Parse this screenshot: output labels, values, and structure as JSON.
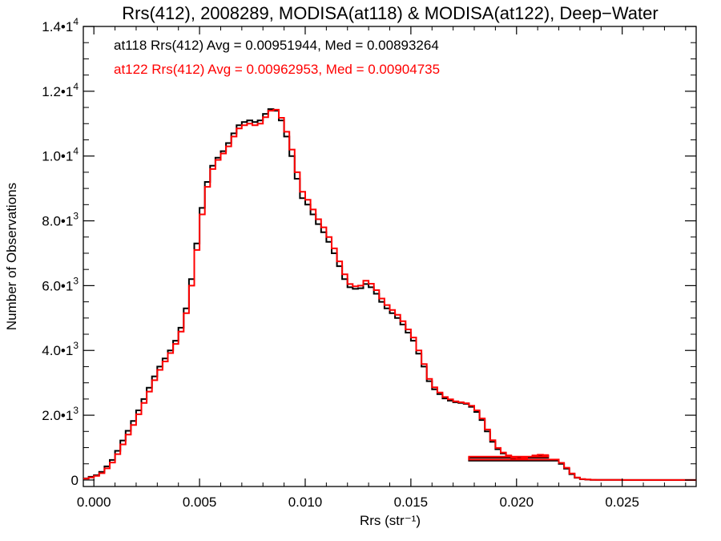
{
  "chart_data": {
    "type": "line",
    "title": "Rrs(412), 2008289, MODISA(at118) & MODISA(at122), Deep−Water",
    "xlabel": "Rrs (str⁻¹)",
    "ylabel": "Number of Observations",
    "xlim": [
      -0.0005,
      0.0285
    ],
    "ylim": [
      -200,
      14000
    ],
    "x_ticks": [
      {
        "value": 0.0,
        "label": "0.000"
      },
      {
        "value": 0.005,
        "label": "0.005"
      },
      {
        "value": 0.01,
        "label": "0.010"
      },
      {
        "value": 0.015,
        "label": "0.015"
      },
      {
        "value": 0.02,
        "label": "0.020"
      },
      {
        "value": 0.025,
        "label": "0.025"
      }
    ],
    "y_ticks": [
      {
        "value": 0,
        "mantissa": "0",
        "exponent": ""
      },
      {
        "value": 2000,
        "mantissa": "2.0•1",
        "exponent": "3"
      },
      {
        "value": 4000,
        "mantissa": "4.0•1",
        "exponent": "3"
      },
      {
        "value": 6000,
        "mantissa": "6.0•1",
        "exponent": "3"
      },
      {
        "value": 8000,
        "mantissa": "8.0•1",
        "exponent": "3"
      },
      {
        "value": 10000,
        "mantissa": "1.0•1",
        "exponent": "4"
      },
      {
        "value": 12000,
        "mantissa": "1.2•1",
        "exponent": "4"
      },
      {
        "value": 14000,
        "mantissa": "1.4•1",
        "exponent": "4"
      }
    ],
    "grid": false,
    "step": true,
    "annotations": [
      {
        "text": "at118 Rrs(412) Avg = 0.00951944, Med = 0.00893264",
        "color": "#000000"
      },
      {
        "text": "at122 Rrs(412) Avg = 0.00962953, Med = 0.00904735",
        "color": "#ff0000"
      }
    ],
    "series": [
      {
        "color": "#000000",
        "x": [
          -0.0005,
          -0.00025,
          0.0,
          0.00025,
          0.0005,
          0.00075,
          0.001,
          0.00125,
          0.0015,
          0.00175,
          0.002,
          0.00225,
          0.0025,
          0.00275,
          0.003,
          0.00325,
          0.0035,
          0.00375,
          0.004,
          0.00425,
          0.0045,
          0.00475,
          0.005,
          0.00525,
          0.0055,
          0.00575,
          0.006,
          0.00625,
          0.0065,
          0.00675,
          0.007,
          0.00725,
          0.0075,
          0.00775,
          0.008,
          0.00825,
          0.0085,
          0.00875,
          0.009,
          0.00925,
          0.0095,
          0.00975,
          0.01,
          0.01025,
          0.0105,
          0.01075,
          0.011,
          0.01125,
          0.0115,
          0.01175,
          0.012,
          0.01225,
          0.0125,
          0.01275,
          0.013,
          0.01325,
          0.0135,
          0.01375,
          0.014,
          0.01425,
          0.0145,
          0.01475,
          0.015,
          0.01525,
          0.0155,
          0.01575,
          0.016,
          0.01625,
          0.0165,
          0.01675,
          0.017,
          0.01725,
          0.0175,
          0.01775,
          0.018,
          0.01825,
          0.0185,
          0.01875,
          0.019,
          0.01925,
          0.0195,
          0.01975,
          0.02,
          0.02025,
          0.0205,
          0.02075,
          0.021,
          0.02125,
          0.0215,
          0.01775,
          0.022,
          0.02225,
          0.0225,
          0.02275,
          0.023,
          0.02325,
          0.0235,
          0.02375,
          0.024,
          0.025,
          0.026,
          0.027,
          0.0285
        ],
        "y": [
          50,
          100,
          150,
          250,
          420,
          620,
          900,
          1220,
          1520,
          1820,
          2150,
          2500,
          2850,
          3200,
          3500,
          3750,
          4000,
          4300,
          4700,
          5300,
          6200,
          7300,
          8400,
          9200,
          9700,
          9950,
          10150,
          10400,
          10700,
          10950,
          11050,
          11100,
          11050,
          11100,
          11300,
          11450,
          11400,
          11100,
          10600,
          10000,
          9300,
          8700,
          8500,
          8200,
          7900,
          7650,
          7350,
          7000,
          6600,
          6200,
          5950,
          5900,
          5920,
          6050,
          5950,
          5750,
          5500,
          5300,
          5150,
          5000,
          4800,
          4550,
          4300,
          3900,
          3500,
          3050,
          2800,
          2650,
          2520,
          2450,
          2400,
          2380,
          2350,
          2260,
          2100,
          1850,
          1500,
          1180,
          950,
          820,
          730,
          660,
          640,
          660,
          700,
          740,
          760,
          740,
          690,
          600,
          500,
          350,
          180,
          70,
          25,
          12,
          6,
          3,
          2,
          1,
          0,
          0,
          0
        ]
      },
      {
        "color": "#ff0000",
        "x": [
          -0.0005,
          -0.00025,
          0.0,
          0.00025,
          0.0005,
          0.00075,
          0.001,
          0.00125,
          0.0015,
          0.00175,
          0.002,
          0.00225,
          0.0025,
          0.00275,
          0.003,
          0.00325,
          0.0035,
          0.00375,
          0.004,
          0.00425,
          0.0045,
          0.00475,
          0.005,
          0.00525,
          0.0055,
          0.00575,
          0.006,
          0.00625,
          0.0065,
          0.00675,
          0.007,
          0.00725,
          0.0075,
          0.00775,
          0.008,
          0.00825,
          0.0085,
          0.00875,
          0.009,
          0.00925,
          0.0095,
          0.00975,
          0.01,
          0.01025,
          0.0105,
          0.01075,
          0.011,
          0.01125,
          0.0115,
          0.01175,
          0.012,
          0.01225,
          0.0125,
          0.01275,
          0.013,
          0.01325,
          0.0135,
          0.01375,
          0.014,
          0.01425,
          0.0145,
          0.01475,
          0.015,
          0.01525,
          0.0155,
          0.01575,
          0.016,
          0.01625,
          0.0165,
          0.01675,
          0.017,
          0.01725,
          0.0175,
          0.01775,
          0.018,
          0.01825,
          0.0185,
          0.01875,
          0.019,
          0.01925,
          0.0195,
          0.01975,
          0.02,
          0.02025,
          0.0205,
          0.02075,
          0.021,
          0.02125,
          0.0215,
          0.01775,
          0.022,
          0.02225,
          0.0225,
          0.02275,
          0.023,
          0.02325,
          0.0235,
          0.02375,
          0.024,
          0.025,
          0.026,
          0.027,
          0.0285
        ],
        "y": [
          40,
          80,
          130,
          210,
          360,
          540,
          800,
          1100,
          1400,
          1700,
          2030,
          2380,
          2730,
          3080,
          3400,
          3660,
          3920,
          4200,
          4580,
          5150,
          6000,
          7100,
          8200,
          9050,
          9600,
          9880,
          10080,
          10300,
          10600,
          10850,
          10950,
          11000,
          10950,
          11000,
          11200,
          11400,
          11430,
          11180,
          10750,
          10200,
          9500,
          8900,
          8650,
          8350,
          8050,
          7800,
          7500,
          7150,
          6750,
          6350,
          6050,
          5980,
          6000,
          6150,
          6060,
          5860,
          5600,
          5400,
          5250,
          5100,
          4900,
          4650,
          4400,
          4000,
          3580,
          3120,
          2860,
          2700,
          2560,
          2490,
          2430,
          2400,
          2370,
          2290,
          2150,
          1900,
          1560,
          1230,
          990,
          850,
          760,
          690,
          660,
          680,
          720,
          760,
          780,
          770,
          720,
          630,
          530,
          380,
          200,
          80,
          30,
          14,
          7,
          4,
          2,
          1,
          0,
          0,
          0
        ]
      }
    ]
  }
}
